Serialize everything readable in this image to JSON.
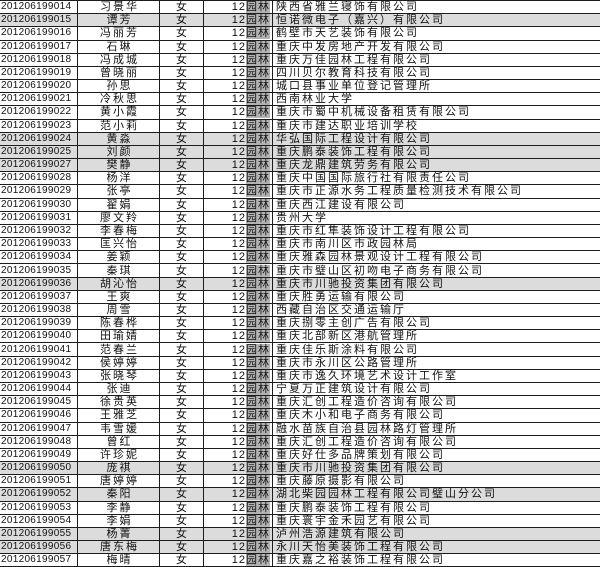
{
  "colors": {
    "border": "#1c1c1c",
    "text": "#111111",
    "class_highlight_bg": "#b3b3b3",
    "row_shade_bg": "#dcdcdc",
    "page_bg": "#ffffff"
  },
  "table": {
    "columns": [
      "student_id",
      "name",
      "gender",
      "class",
      "employer"
    ],
    "rows": [
      {
        "id": "201206199014",
        "name": "习景华",
        "gender": "女",
        "class_prefix": "12",
        "class_name": "园林",
        "company": "陕西省雅兰寝饰有限公司",
        "shaded": false
      },
      {
        "id": "201206199015",
        "name": "谭芳",
        "gender": "女",
        "class_prefix": "12",
        "class_name": "园林",
        "company": "恒诺微电子（嘉兴）有限公司",
        "shaded": true
      },
      {
        "id": "201206199016",
        "name": "冯丽芳",
        "gender": "女",
        "class_prefix": "12",
        "class_name": "园林",
        "company": "鹤壁市天艺装饰有限公司",
        "shaded": false
      },
      {
        "id": "201206199017",
        "name": "石琳",
        "gender": "女",
        "class_prefix": "12",
        "class_name": "园林",
        "company": "重庆中发房地产开发有限公司",
        "shaded": false
      },
      {
        "id": "201206199018",
        "name": "冯成城",
        "gender": "女",
        "class_prefix": "12",
        "class_name": "园林",
        "company": "重庆万佳园林工程有限公司",
        "shaded": false
      },
      {
        "id": "201206199019",
        "name": "曾晓丽",
        "gender": "女",
        "class_prefix": "12",
        "class_name": "园林",
        "company": "四川贝尔教育科技有限公司",
        "shaded": false
      },
      {
        "id": "201206199020",
        "name": "孙思",
        "gender": "女",
        "class_prefix": "12",
        "class_name": "园林",
        "company": "城口县事业单位登记管理所",
        "shaded": false
      },
      {
        "id": "201206199021",
        "name": "冷秋思",
        "gender": "女",
        "class_prefix": "12",
        "class_name": "园林",
        "company": "西南林业大学",
        "shaded": false
      },
      {
        "id": "201206199022",
        "name": "黄小霞",
        "gender": "女",
        "class_prefix": "12",
        "class_name": "园林",
        "company": "重庆市蜀中机械设备租赁有限公司",
        "shaded": false
      },
      {
        "id": "201206199023",
        "name": "范小莉",
        "gender": "女",
        "class_prefix": "12",
        "class_name": "园林",
        "company": "重庆市建达职业培训学校",
        "shaded": false
      },
      {
        "id": "201206199024",
        "name": "黄淼",
        "gender": "女",
        "class_prefix": "12",
        "class_name": "园林",
        "company": "华弘国际工程设计有限公司",
        "shaded": true
      },
      {
        "id": "201206199025",
        "name": "刘颜",
        "gender": "女",
        "class_prefix": "12",
        "class_name": "园林",
        "company": "重庆鹏泰装饰工程有限公司",
        "shaded": true
      },
      {
        "id": "201206199027",
        "name": "樊静",
        "gender": "女",
        "class_prefix": "12",
        "class_name": "园林",
        "company": "重庆龙鼎建筑劳务有限公司",
        "shaded": true
      },
      {
        "id": "201206199028",
        "name": "杨洋",
        "gender": "女",
        "class_prefix": "12",
        "class_name": "园林",
        "company": "重庆中国国际旅行社有限责任公司",
        "shaded": false
      },
      {
        "id": "201206199029",
        "name": "张亭",
        "gender": "女",
        "class_prefix": "12",
        "class_name": "园林",
        "company": "重庆市正源水务工程质量检测技术有限公司",
        "shaded": false
      },
      {
        "id": "201206199030",
        "name": "翟娟",
        "gender": "女",
        "class_prefix": "12",
        "class_name": "园林",
        "company": "重庆西江建设有限公司",
        "shaded": false
      },
      {
        "id": "201206199031",
        "name": "廖文羚",
        "gender": "女",
        "class_prefix": "12",
        "class_name": "园林",
        "company": "贵州大学",
        "shaded": false
      },
      {
        "id": "201206199032",
        "name": "李春梅",
        "gender": "女",
        "class_prefix": "12",
        "class_name": "园林",
        "company": "重庆市红隼装饰设计工程有限公司",
        "shaded": false
      },
      {
        "id": "201206199033",
        "name": "匡兴怡",
        "gender": "女",
        "class_prefix": "12",
        "class_name": "园林",
        "company": "重庆市南川区市政园林局",
        "shaded": false
      },
      {
        "id": "201206199034",
        "name": "姜颖",
        "gender": "女",
        "class_prefix": "12",
        "class_name": "园林",
        "company": "重庆雅森园林景观设计工程有限公司",
        "shaded": false
      },
      {
        "id": "201206199035",
        "name": "秦琪",
        "gender": "女",
        "class_prefix": "12",
        "class_name": "园林",
        "company": "重庆市璧山区初吻电子商务有限公司",
        "shaded": false
      },
      {
        "id": "201206199036",
        "name": "胡沁怡",
        "gender": "女",
        "class_prefix": "12",
        "class_name": "园林",
        "company": "重庆市川驰投资集团有限公司",
        "shaded": true
      },
      {
        "id": "201206199037",
        "name": "王爽",
        "gender": "女",
        "class_prefix": "12",
        "class_name": "园林",
        "company": "重庆胜勇运输有限公司",
        "shaded": false
      },
      {
        "id": "201206199038",
        "name": "周雪",
        "gender": "女",
        "class_prefix": "12",
        "class_name": "园林",
        "company": "西藏自治区交通运输厅",
        "shaded": false
      },
      {
        "id": "201206199039",
        "name": "陈春桦",
        "gender": "女",
        "class_prefix": "12",
        "class_name": "园林",
        "company": "重庆捌零主创广告有限公司",
        "shaded": false
      },
      {
        "id": "201206199040",
        "name": "田瑜婧",
        "gender": "女",
        "class_prefix": "12",
        "class_name": "园林",
        "company": "重庆北部新区港航管理所",
        "shaded": false
      },
      {
        "id": "201206199041",
        "name": "范春兰",
        "gender": "女",
        "class_prefix": "12",
        "class_name": "园林",
        "company": "重庆佳乐斯涂料有限公司",
        "shaded": false
      },
      {
        "id": "201206199042",
        "name": "侯婷婷",
        "gender": "女",
        "class_prefix": "12",
        "class_name": "园林",
        "company": "重庆市永川区公路管理所",
        "shaded": false
      },
      {
        "id": "201206199043",
        "name": "张晓琴",
        "gender": "女",
        "class_prefix": "12",
        "class_name": "园林",
        "company": "重庆市逸久环境艺术设计工作室",
        "shaded": false
      },
      {
        "id": "201206199044",
        "name": "张迪",
        "gender": "女",
        "class_prefix": "12",
        "class_name": "园林",
        "company": "宁夏万正建筑设计有限公司",
        "shaded": false
      },
      {
        "id": "201206199045",
        "name": "徐贵英",
        "gender": "女",
        "class_prefix": "12",
        "class_name": "园林",
        "company": "重庆汇创工程造价咨询有限公司",
        "shaded": false
      },
      {
        "id": "201206199046",
        "name": "王雅芝",
        "gender": "女",
        "class_prefix": "12",
        "class_name": "园林",
        "company": "重庆木小和电子商务有限公司",
        "shaded": false
      },
      {
        "id": "201206199047",
        "name": "韦雪媛",
        "gender": "女",
        "class_prefix": "12",
        "class_name": "园林",
        "company": "融水苗族自治县园林路灯管理所",
        "shaded": false
      },
      {
        "id": "201206199048",
        "name": "曾红",
        "gender": "女",
        "class_prefix": "12",
        "class_name": "园林",
        "company": "重庆汇创工程造价咨询有限公司",
        "shaded": false
      },
      {
        "id": "201206199049",
        "name": "许珍妮",
        "gender": "女",
        "class_prefix": "12",
        "class_name": "园林",
        "company": "重庆好仕多品牌策划有限公司",
        "shaded": false
      },
      {
        "id": "201206199050",
        "name": "庞祺",
        "gender": "女",
        "class_prefix": "12",
        "class_name": "园林",
        "company": "重庆市川驰投资集团有限公司",
        "shaded": true
      },
      {
        "id": "201206199051",
        "name": "唐婷婷",
        "gender": "女",
        "class_prefix": "12",
        "class_name": "园林",
        "company": "重庆藤原摄影有限公司",
        "shaded": false
      },
      {
        "id": "201206199052",
        "name": "秦阳",
        "gender": "女",
        "class_prefix": "12",
        "class_name": "园林",
        "company": "湖北柴园园林工程有限公司璧山分公司",
        "shaded": true
      },
      {
        "id": "201206199053",
        "name": "李静",
        "gender": "女",
        "class_prefix": "12",
        "class_name": "园林",
        "company": "重庆鹏泰装饰工程有限公司",
        "shaded": false
      },
      {
        "id": "201206199054",
        "name": "李娟",
        "gender": "女",
        "class_prefix": "12",
        "class_name": "园林",
        "company": "重庆寰宇金禾园艺有限公司",
        "shaded": false
      },
      {
        "id": "201206199055",
        "name": "杨菁",
        "gender": "女",
        "class_prefix": "12",
        "class_name": "园林",
        "company": "泸州浩源建筑有限公司",
        "shaded": true
      },
      {
        "id": "201206199056",
        "name": "唐东梅",
        "gender": "女",
        "class_prefix": "12",
        "class_name": "园林",
        "company": "永川天怡美装饰工程有限公司",
        "shaded": true
      },
      {
        "id": "201206199057",
        "name": "梅晴",
        "gender": "女",
        "class_prefix": "12",
        "class_name": "园林",
        "company": "重庆嘉之裕装饰工程有限公司",
        "shaded": false
      }
    ]
  }
}
